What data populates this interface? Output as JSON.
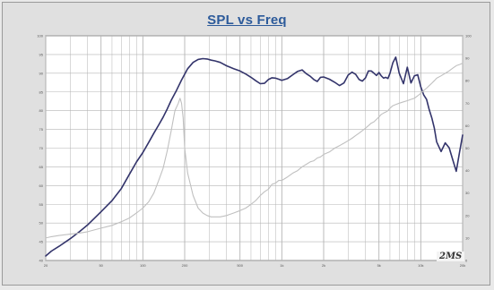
{
  "chart_data": {
    "type": "line",
    "title": "SPL vs Freq",
    "x_scale": "log",
    "xlim": [
      20,
      20000
    ],
    "x_ticks": [
      20,
      50,
      100,
      200,
      500,
      1000,
      2000,
      5000,
      10000,
      20000
    ],
    "ylim": [
      40,
      100
    ],
    "y_ticks": [
      40,
      45,
      50,
      55,
      60,
      65,
      70,
      75,
      80,
      85,
      90,
      95,
      100
    ],
    "y2lim": [
      0,
      100
    ],
    "grid": true,
    "series": [
      {
        "role": "spl",
        "axis": "left",
        "color": "#33346b",
        "x": [
          20,
          22,
          25,
          30,
          35,
          40,
          50,
          60,
          70,
          80,
          90,
          100,
          110,
          120,
          130,
          140,
          150,
          160,
          175,
          190,
          210,
          230,
          250,
          270,
          290,
          310,
          330,
          360,
          400,
          450,
          500,
          550,
          600,
          650,
          700,
          750,
          800,
          850,
          900,
          950,
          1000,
          1100,
          1200,
          1300,
          1400,
          1500,
          1600,
          1700,
          1800,
          1900,
          2000,
          2200,
          2400,
          2600,
          2800,
          3000,
          3200,
          3400,
          3600,
          3800,
          4000,
          4200,
          4400,
          4600,
          4800,
          5000,
          5200,
          5400,
          5600,
          5800,
          6000,
          6300,
          6600,
          7000,
          7500,
          8000,
          8500,
          9000,
          9500,
          10000,
          10500,
          11000,
          11500,
          12000,
          12500,
          13000,
          14000,
          15000,
          16000,
          17000,
          18000,
          19000,
          20000
        ],
        "y": [
          41.2,
          42.5,
          43.8,
          45.8,
          47.7,
          49.5,
          53.0,
          56.0,
          59.2,
          63.0,
          66.3,
          68.8,
          71.5,
          74.0,
          76.2,
          78.3,
          80.5,
          82.8,
          85.5,
          88.2,
          91.2,
          92.9,
          93.7,
          93.9,
          93.8,
          93.5,
          93.3,
          92.9,
          92.0,
          91.2,
          90.6,
          89.8,
          88.9,
          88.0,
          87.2,
          87.3,
          88.3,
          88.8,
          88.7,
          88.4,
          88.1,
          88.6,
          89.6,
          90.5,
          90.9,
          89.9,
          89.2,
          88.3,
          87.8,
          88.9,
          89.0,
          88.4,
          87.6,
          86.7,
          87.4,
          89.5,
          90.3,
          89.7,
          88.3,
          87.9,
          88.8,
          90.6,
          90.6,
          90.0,
          89.4,
          90.2,
          89.3,
          88.7,
          88.9,
          88.6,
          90.0,
          92.8,
          94.3,
          90.0,
          87.2,
          91.6,
          87.4,
          89.3,
          89.6,
          86.4,
          84.2,
          83.0,
          80.3,
          78.1,
          75.4,
          71.7,
          69.1,
          71.4,
          70.1,
          66.8,
          63.8,
          68.8,
          73.5
        ]
      },
      {
        "role": "impedance",
        "axis": "right",
        "color": "#c0c0c0",
        "x": [
          20,
          22,
          25,
          30,
          35,
          40,
          50,
          60,
          70,
          80,
          90,
          100,
          110,
          120,
          130,
          140,
          150,
          160,
          170,
          180,
          185,
          190,
          195,
          200,
          210,
          230,
          250,
          270,
          290,
          310,
          330,
          360,
          400,
          450,
          500,
          550,
          600,
          650,
          700,
          750,
          800,
          850,
          900,
          950,
          1000,
          1100,
          1200,
          1300,
          1400,
          1500,
          1600,
          1700,
          1800,
          1900,
          2000,
          2200,
          2400,
          2600,
          2800,
          3000,
          3200,
          3400,
          3600,
          3800,
          4000,
          4200,
          4400,
          4600,
          4800,
          5000,
          5200,
          5400,
          5600,
          5800,
          6000,
          6300,
          6600,
          7000,
          7500,
          8000,
          8500,
          9000,
          9500,
          10000,
          10500,
          11000,
          11500,
          12000,
          12500,
          13000,
          14000,
          15000,
          16000,
          17000,
          18000,
          19000,
          20000
        ],
        "y": [
          10.0,
          10.6,
          11.1,
          11.7,
          12.2,
          12.8,
          14.4,
          15.6,
          17.2,
          18.9,
          21.1,
          23.3,
          26.1,
          30.0,
          35.6,
          41.1,
          48.9,
          57.8,
          66.7,
          70.0,
          72.2,
          70.0,
          63.3,
          50.0,
          38.9,
          28.9,
          23.3,
          21.1,
          20.0,
          19.4,
          19.4,
          19.4,
          20.0,
          21.1,
          22.2,
          23.3,
          25.0,
          26.7,
          28.9,
          30.6,
          31.7,
          33.9,
          34.4,
          35.6,
          35.6,
          37.2,
          38.9,
          40.0,
          41.7,
          42.8,
          43.9,
          44.4,
          45.6,
          46.1,
          47.2,
          48.3,
          50.0,
          51.1,
          52.2,
          53.3,
          54.4,
          55.6,
          56.7,
          57.8,
          58.9,
          60.0,
          61.1,
          61.7,
          62.8,
          63.9,
          65.0,
          65.6,
          66.1,
          66.7,
          67.8,
          68.9,
          69.4,
          70.0,
          70.6,
          71.1,
          71.7,
          72.2,
          73.3,
          74.4,
          75.6,
          76.7,
          77.8,
          78.9,
          80.0,
          81.1,
          82.2,
          83.3,
          84.4,
          85.6,
          86.7,
          87.2,
          87.8
        ]
      }
    ]
  },
  "watermark": "2MS",
  "colors": {
    "background": "#e0e0e0",
    "plot_background": "#ffffff",
    "grid": "#b4b4b4",
    "title": "#2c5a9a"
  }
}
